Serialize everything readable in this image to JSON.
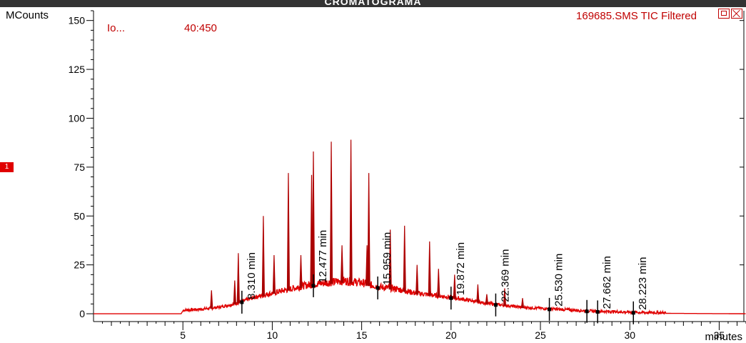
{
  "title": "CROMATOGRAMA",
  "marker_badge": "1",
  "chart_data": {
    "type": "line",
    "trace_label": "169685.SMS TIC Filtered",
    "legend_left": "Io...",
    "legend_range": "40:450",
    "ylabel": "MCounts",
    "xlabel": "minutes",
    "xlim": [
      0,
      36.5
    ],
    "ylim": [
      -4,
      155
    ],
    "x_ticks": [
      5,
      10,
      15,
      20,
      25,
      30,
      35
    ],
    "y_ticks": [
      0,
      25,
      50,
      75,
      100,
      125,
      150
    ],
    "trace_color": "#e00000",
    "baseline": [
      [
        0,
        0
      ],
      [
        4.9,
        0
      ],
      [
        5.0,
        1.5
      ],
      [
        6,
        2
      ],
      [
        7,
        3
      ],
      [
        8,
        5
      ],
      [
        9,
        8
      ],
      [
        10,
        10
      ],
      [
        11,
        12
      ],
      [
        12,
        14
      ],
      [
        13,
        15
      ],
      [
        14,
        16
      ],
      [
        15,
        15
      ],
      [
        16,
        13
      ],
      [
        17,
        12
      ],
      [
        18,
        10
      ],
      [
        19,
        9
      ],
      [
        20,
        8
      ],
      [
        21,
        6.5
      ],
      [
        22,
        5
      ],
      [
        23,
        4
      ],
      [
        24,
        3
      ],
      [
        25,
        2.5
      ],
      [
        26,
        2
      ],
      [
        27,
        1.5
      ],
      [
        28,
        1
      ],
      [
        29,
        0.8
      ],
      [
        30,
        0.5
      ],
      [
        31,
        0.3
      ],
      [
        32,
        0.2
      ],
      [
        34,
        0.1
      ],
      [
        36.5,
        0
      ]
    ],
    "peaks": [
      {
        "x": 6.6,
        "y": 12
      },
      {
        "x": 7.9,
        "y": 17
      },
      {
        "x": 8.1,
        "y": 31
      },
      {
        "x": 9.5,
        "y": 50
      },
      {
        "x": 10.1,
        "y": 30
      },
      {
        "x": 10.9,
        "y": 72
      },
      {
        "x": 11.6,
        "y": 30
      },
      {
        "x": 12.2,
        "y": 71
      },
      {
        "x": 12.3,
        "y": 83
      },
      {
        "x": 13.3,
        "y": 88
      },
      {
        "x": 13.9,
        "y": 35
      },
      {
        "x": 14.4,
        "y": 89
      },
      {
        "x": 15.3,
        "y": 35
      },
      {
        "x": 15.4,
        "y": 72
      },
      {
        "x": 16.6,
        "y": 43
      },
      {
        "x": 17.4,
        "y": 45
      },
      {
        "x": 18.1,
        "y": 25
      },
      {
        "x": 18.8,
        "y": 37
      },
      {
        "x": 19.3,
        "y": 23
      },
      {
        "x": 20.2,
        "y": 20
      },
      {
        "x": 21.5,
        "y": 15
      },
      {
        "x": 22.0,
        "y": 10
      },
      {
        "x": 23.0,
        "y": 13
      },
      {
        "x": 24.0,
        "y": 8
      }
    ],
    "integration_marks": [
      {
        "x": 8.3,
        "label": "8.310 min"
      },
      {
        "x": 12.3,
        "label": "12.477 min"
      },
      {
        "x": 15.9,
        "label": "15.959 min"
      },
      {
        "x": 20.0,
        "label": "19.872 min"
      },
      {
        "x": 22.5,
        "label": "22.369 min"
      },
      {
        "x": 25.5,
        "label": "25.530 min"
      },
      {
        "x": 27.6,
        "label": ""
      },
      {
        "x": 28.2,
        "label": "27.662 min"
      },
      {
        "x": 30.2,
        "label": "28.223 min"
      }
    ]
  }
}
